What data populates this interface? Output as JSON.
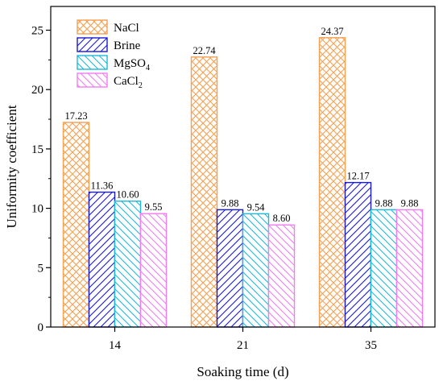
{
  "chart_data": {
    "type": "bar",
    "xlabel": "Soaking time (d)",
    "ylabel": "Uniformity coefficient",
    "ylim": [
      0,
      27
    ],
    "yticks": [
      "0",
      "5",
      "10",
      "15",
      "20",
      "25"
    ],
    "categories": [
      "14",
      "21",
      "35"
    ],
    "series": [
      {
        "name": "NaCl",
        "color": "#f5a050",
        "pattern": "crosshatch",
        "values": [
          17.23,
          22.74,
          24.37
        ],
        "labels": [
          "17.23",
          "22.74",
          "24.37"
        ]
      },
      {
        "name": "Brine",
        "color": "#1a1ad0",
        "pattern": "forward-diagonal",
        "values": [
          11.36,
          9.88,
          12.17
        ],
        "labels": [
          "11.36",
          "9.88",
          "12.17"
        ]
      },
      {
        "name": "MgSO4",
        "color": "#20b8d8",
        "pattern": "backward-diagonal",
        "values": [
          10.6,
          9.54,
          9.88
        ],
        "labels": [
          "10.60",
          "9.54",
          "9.88"
        ]
      },
      {
        "name": "CaCl2",
        "color": "#f07ef0",
        "pattern": "backward-diagonal",
        "values": [
          9.55,
          8.6,
          9.88
        ],
        "labels": [
          "9.55",
          "8.60",
          "9.88"
        ]
      }
    ],
    "legend": {
      "placement": "top-left",
      "entries": [
        {
          "base": "NaCl",
          "sub": ""
        },
        {
          "base": "Brine",
          "sub": ""
        },
        {
          "base": "MgSO",
          "sub": "4"
        },
        {
          "base": "CaCl",
          "sub": "2"
        }
      ]
    }
  }
}
